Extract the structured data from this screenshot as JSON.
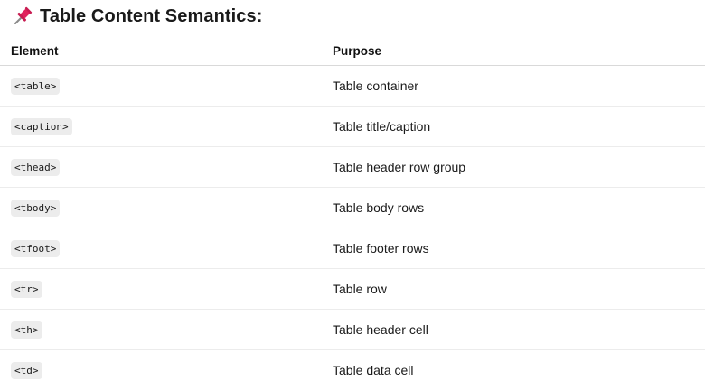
{
  "heading": {
    "icon": "pushpin-icon",
    "title": "Table Content Semantics:"
  },
  "table": {
    "headers": {
      "element": "Element",
      "purpose": "Purpose"
    },
    "rows": [
      {
        "element": "<table>",
        "purpose": "Table container"
      },
      {
        "element": "<caption>",
        "purpose": "Table title/caption"
      },
      {
        "element": "<thead>",
        "purpose": "Table header row group"
      },
      {
        "element": "<tbody>",
        "purpose": "Table body rows"
      },
      {
        "element": "<tfoot>",
        "purpose": "Table footer rows"
      },
      {
        "element": "<tr>",
        "purpose": "Table row"
      },
      {
        "element": "<th>",
        "purpose": "Table header cell"
      },
      {
        "element": "<td>",
        "purpose": "Table data cell"
      }
    ]
  },
  "colors": {
    "pin": "#e0245e",
    "code_background": "#ececec"
  }
}
